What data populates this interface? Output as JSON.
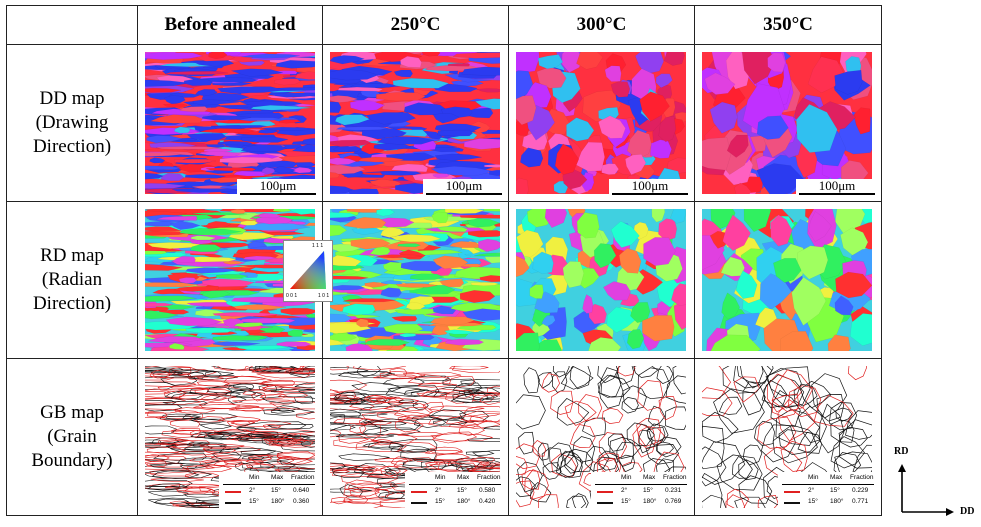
{
  "columns": [
    "",
    "Before annealed",
    "250°C",
    "300°C",
    "350°C"
  ],
  "rows": [
    {
      "label_lines": [
        "DD map",
        "(Drawing",
        "Direction)"
      ]
    },
    {
      "label_lines": [
        "RD map",
        "(Radian",
        "Direction)"
      ]
    },
    {
      "label_lines": [
        "GB map",
        "(Grain",
        "Boundary)"
      ]
    }
  ],
  "scale_bar_text": "100μm",
  "ipf_labels": {
    "top": "1 1 1",
    "left": "0 0 1",
    "right": "1 0 1"
  },
  "gb_legend": {
    "headers": [
      "Min",
      "Max",
      "Fraction"
    ],
    "line1": {
      "min": "2°",
      "max": "15°",
      "color": "#e02020"
    },
    "line2": {
      "min": "15°",
      "max": "180°",
      "color": "#111111"
    },
    "fractions": [
      [
        "0.640",
        "0.360"
      ],
      [
        "0.580",
        "0.420"
      ],
      [
        "0.231",
        "0.769"
      ],
      [
        "0.229",
        "0.771"
      ]
    ]
  },
  "axes": {
    "vertical": "RD",
    "horizontal": "DD"
  },
  "colors": {
    "red": "#ff2030",
    "blue": "#2b3bf0",
    "magenta": "#e040e0",
    "green": "#30f060",
    "cyan": "#30d0f0",
    "yellow": "#f0f040"
  }
}
